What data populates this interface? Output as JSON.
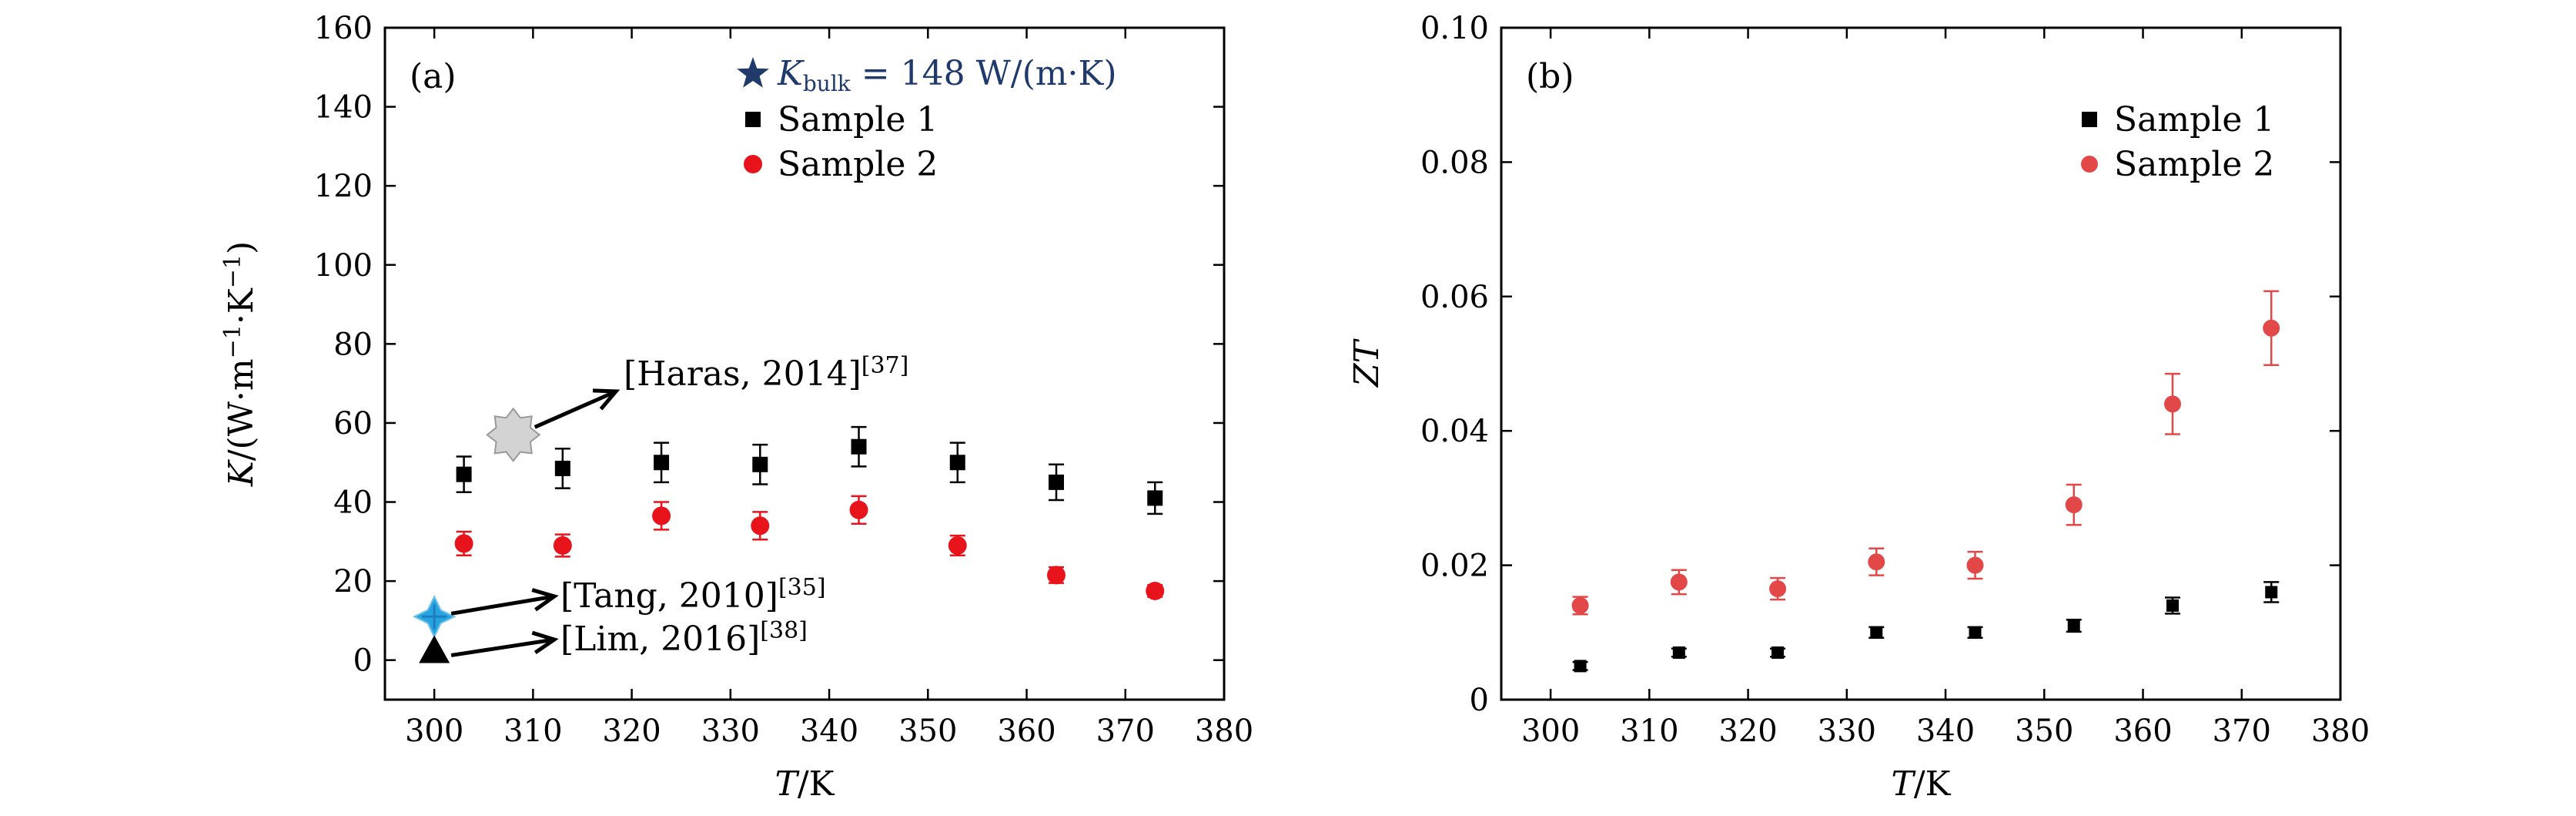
{
  "chart_data": [
    {
      "type": "scatter",
      "panel_label": "(a)",
      "xlabel": {
        "italic": "T",
        "rest": "/K"
      },
      "ylabel": {
        "italic": "K",
        "rest": "/(W·m",
        "sup1": "−1",
        "mid": "·K",
        "sup2": "−1",
        "end": ")"
      },
      "xlim": [
        295,
        380
      ],
      "ylim": [
        -10,
        160
      ],
      "xticks": [
        300,
        310,
        320,
        330,
        340,
        350,
        360,
        370,
        380
      ],
      "yticks": [
        0,
        20,
        40,
        60,
        80,
        100,
        120,
        140,
        160
      ],
      "legend_position": "top-right",
      "reference_line_label": {
        "pre": "K",
        "sub": "bulk",
        "post": " = 148 W/(m·K)"
      },
      "reference_color": "#1f3a6b",
      "series": [
        {
          "name": "Sample 1",
          "marker": "square",
          "color": "#000000",
          "x": [
            303,
            313,
            323,
            333,
            343,
            353,
            363,
            373
          ],
          "y": [
            47,
            48.5,
            50,
            49.5,
            54,
            50,
            45,
            41
          ],
          "err": [
            4.5,
            5,
            5,
            5,
            5,
            5,
            4.5,
            4
          ]
        },
        {
          "name": "Sample 2",
          "marker": "circle",
          "color": "#e8141b",
          "x": [
            303,
            313,
            323,
            333,
            343,
            353,
            363,
            373
          ],
          "y": [
            29.5,
            29,
            36.5,
            34,
            38,
            29,
            21.5,
            17.5
          ],
          "err": [
            3,
            2.8,
            3.5,
            3.5,
            3.5,
            2.5,
            2,
            1.5
          ]
        }
      ],
      "annotations": [
        {
          "label": "[Haras, 2014]",
          "ref": "[37]",
          "x": 308,
          "y": 57,
          "marker": "gray-star",
          "color": "#d3d3d3"
        },
        {
          "label": "[Tang, 2010]",
          "ref": "[35]",
          "x": 300,
          "y": 11,
          "marker": "blue-cross",
          "color": "#29a3e0"
        },
        {
          "label": "[Lim, 2016]",
          "ref": "[38]",
          "x": 300,
          "y": 2,
          "marker": "black-triangle",
          "color": "#000000"
        }
      ]
    },
    {
      "type": "scatter",
      "panel_label": "(b)",
      "xlabel": {
        "italic": "T",
        "rest": "/K"
      },
      "ylabel": {
        "italic": "ZT",
        "rest": ""
      },
      "xlim": [
        295,
        380
      ],
      "ylim": [
        0,
        0.1
      ],
      "xticks": [
        300,
        310,
        320,
        330,
        340,
        350,
        360,
        370,
        380
      ],
      "yticks": [
        "0",
        "0.02",
        "0.04",
        "0.06",
        "0.08",
        "0.10"
      ],
      "legend_position": "top-right",
      "series": [
        {
          "name": "Sample 1",
          "marker": "square",
          "color": "#000000",
          "x": [
            303,
            313,
            323,
            333,
            343,
            353,
            363,
            373
          ],
          "y": [
            0.005,
            0.007,
            0.007,
            0.01,
            0.01,
            0.011,
            0.014,
            0.016
          ],
          "err": [
            0.0006,
            0.0006,
            0.0006,
            0.0008,
            0.0008,
            0.0009,
            0.0012,
            0.0015
          ]
        },
        {
          "name": "Sample 2",
          "marker": "circle",
          "color": "#e34848",
          "x": [
            303,
            313,
            323,
            333,
            343,
            353,
            363,
            373
          ],
          "y": [
            0.014,
            0.0175,
            0.0165,
            0.0205,
            0.02,
            0.029,
            0.044,
            0.0553
          ],
          "err": [
            0.0013,
            0.0018,
            0.0016,
            0.002,
            0.002,
            0.003,
            0.0045,
            0.0055
          ]
        }
      ]
    }
  ]
}
